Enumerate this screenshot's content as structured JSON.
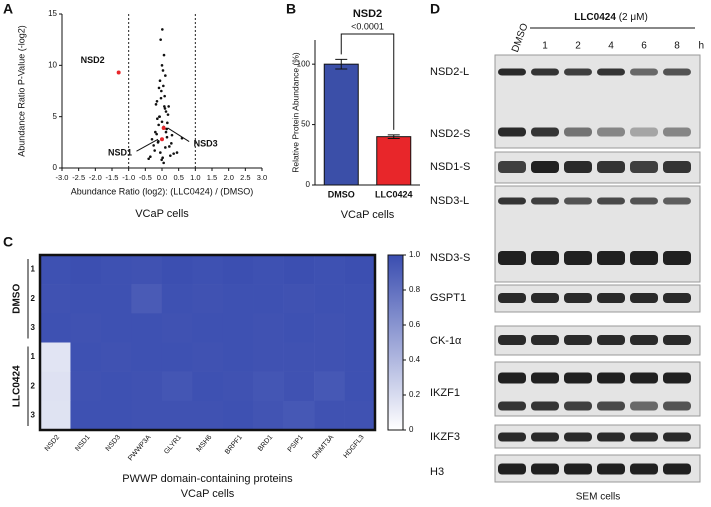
{
  "chart_data": [
    {
      "type": "scatter",
      "panel": "A",
      "x_label": "Abundance Ratio (log2): (LLC0424) / (DMSO)",
      "y_label": "Abundance Ratio P-Value (-log2)",
      "caption": "VCaP cells",
      "x": [
        0.02,
        -0.05,
        0.1,
        -0.12,
        0.15,
        -0.2,
        0.05,
        0.0,
        -0.08,
        0.12,
        0.2,
        -0.15,
        0.25,
        -0.25,
        0.08,
        -0.02,
        0.3,
        -0.3,
        0.04,
        -0.06,
        0.1,
        -0.1,
        0.18,
        -0.18,
        0.0,
        0.06,
        -0.04,
        0.14,
        -0.14,
        0.22,
        -0.22,
        0.35,
        -0.35,
        0.03,
        -0.03,
        0.09,
        -0.09,
        0.16,
        -0.16,
        0.01,
        0.07,
        -0.07,
        0.12,
        -0.11,
        0.05,
        -0.01,
        0.28,
        0.45,
        -0.4,
        0.6
      ],
      "values": [
        1,
        1.5,
        2,
        2.5,
        3,
        3.5,
        4,
        4.5,
        5,
        5.5,
        6,
        6.5,
        1.2,
        2.2,
        7,
        7.5,
        3.2,
        2.8,
        8,
        8.5,
        9,
        4.2,
        5.2,
        6.2,
        10,
        11,
        12.5,
        3.8,
        4.8,
        2.1,
        1.7,
        1.4,
        1.1,
        9.5,
        6.8,
        5.8,
        7.8,
        4.4,
        3.3,
        13.5,
        6,
        5,
        3.5,
        2.6,
        0.5,
        0.8,
        2.4,
        1.5,
        0.9,
        2.9
      ],
      "color": "#111111",
      "annotations": [
        {
          "text": "NSD2",
          "x": -1.3,
          "y": 9.3
        },
        {
          "text": "NSD1",
          "x": 0.0,
          "y": 2.8
        },
        {
          "text": "NSD3",
          "x": 0.05,
          "y": 3.9
        }
      ],
      "highlight_color": "#e8262a",
      "vlines": [
        -1,
        1
      ],
      "xlim": [
        -3,
        3
      ],
      "xticks": [
        {
          "value": -3,
          "label": "-3.0"
        },
        -2.5,
        {
          "value": -2,
          "label": "-2.0"
        },
        -1.5,
        {
          "value": -1,
          "label": "-1.0"
        },
        -0.5,
        {
          "value": 0,
          "label": "0.0"
        },
        0.5,
        {
          "value": 1,
          "label": "1.0"
        },
        1.5,
        {
          "value": 2,
          "label": "2.0"
        },
        2.5,
        {
          "value": 3,
          "label": "3.0"
        }
      ],
      "ylim": [
        0,
        15
      ],
      "yticks": [
        0,
        5,
        10,
        15
      ]
    },
    {
      "type": "bar",
      "panel": "B",
      "title": "NSD2",
      "annotation": "<0.0001",
      "y_label": "Relative  Protein Abundance (%)",
      "caption": "VCaP cells",
      "categories": [
        "DMSO",
        "LLC0424"
      ],
      "values": [
        100,
        40
      ],
      "errors": [
        4,
        1.5
      ],
      "colors": [
        "#3b4fa8",
        "#e8262a"
      ],
      "ylim": [
        0,
        120
      ],
      "yticks": [
        0,
        50,
        100
      ]
    },
    {
      "type": "heatmap",
      "panel": "C",
      "x_label": "PWWP domain-containing proteins",
      "caption": "VCaP cells",
      "columns": [
        "NSD2",
        "NSD1",
        "NSD3",
        "PWWP3A",
        "GLYR1",
        "MSH6",
        "BRPF1",
        "BRD1",
        "PSIP1",
        "DNMT3A",
        "HDGFL3"
      ],
      "row_groups": [
        {
          "name": "DMSO",
          "rows": [
            "1",
            "2",
            "3"
          ]
        },
        {
          "name": "LLC0424",
          "rows": [
            "1",
            "2",
            "3"
          ]
        }
      ],
      "values": [
        [
          0.98,
          0.99,
          0.98,
          0.97,
          0.99,
          0.98,
          0.99,
          0.98,
          0.99,
          0.98,
          0.99
        ],
        [
          0.97,
          0.98,
          0.98,
          0.92,
          0.98,
          0.97,
          0.98,
          0.98,
          0.97,
          0.98,
          0.98
        ],
        [
          0.98,
          0.97,
          0.98,
          0.98,
          0.97,
          0.98,
          0.98,
          0.97,
          0.98,
          0.97,
          0.98
        ],
        [
          0.15,
          0.98,
          0.97,
          0.98,
          0.98,
          0.97,
          0.98,
          0.97,
          0.97,
          0.97,
          0.98
        ],
        [
          0.17,
          0.97,
          0.98,
          0.97,
          0.95,
          0.98,
          0.97,
          0.95,
          0.97,
          0.94,
          0.98
        ],
        [
          0.16,
          0.98,
          0.98,
          0.97,
          0.97,
          0.97,
          0.98,
          0.96,
          0.94,
          0.97,
          0.97
        ]
      ],
      "cmap": [
        "#ffffff",
        "#3a4db0"
      ],
      "zlim": [
        0,
        1
      ],
      "zticks": [
        0,
        0.2,
        0.4,
        0.6,
        0.8,
        {
          "value": 1,
          "label": "1.0"
        }
      ]
    }
  ],
  "blot": {
    "panel": "D",
    "control": "DMSO",
    "treatment": "LLC0424",
    "dose": "(2 μM)",
    "timepoints": [
      "1",
      "2",
      "4",
      "6",
      "8"
    ],
    "time_unit": "h",
    "rows": [
      "NSD2-L",
      "NSD2-S",
      "NSD1-S",
      "NSD3-L",
      "NSD3-S",
      "GSPT1",
      "CK-1α",
      "IKZF1",
      "IKZF3",
      "H3"
    ],
    "caption": "SEM cells"
  }
}
